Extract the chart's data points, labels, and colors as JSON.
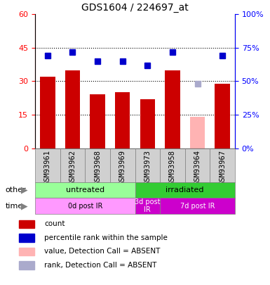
{
  "title": "GDS1604 / 224697_at",
  "samples": [
    "GSM93961",
    "GSM93962",
    "GSM93968",
    "GSM93969",
    "GSM93973",
    "GSM93958",
    "GSM93964",
    "GSM93967"
  ],
  "counts": [
    32,
    35,
    24,
    25,
    22,
    35,
    null,
    29
  ],
  "ranks": [
    69,
    72,
    65,
    65,
    62,
    72,
    null,
    69
  ],
  "absent_count": [
    null,
    null,
    null,
    null,
    null,
    null,
    14,
    null
  ],
  "absent_rank": [
    null,
    null,
    null,
    null,
    null,
    null,
    48,
    null
  ],
  "ylim_left": [
    0,
    60
  ],
  "ylim_right": [
    0,
    100
  ],
  "yticks_left": [
    0,
    15,
    30,
    45,
    60
  ],
  "yticks_right": [
    0,
    25,
    50,
    75,
    100
  ],
  "ytick_labels_left": [
    "0",
    "15",
    "30",
    "45",
    "60"
  ],
  "ytick_labels_right": [
    "0%",
    "25%",
    "50%",
    "75%",
    "100%"
  ],
  "bar_color": "#cc0000",
  "bar_color_absent": "#ffb3b3",
  "rank_color": "#0000cc",
  "rank_color_absent": "#aaaacc",
  "group_other": [
    {
      "label": "untreated",
      "start": 0,
      "end": 4,
      "color": "#99ff99"
    },
    {
      "label": "irradiated",
      "start": 4,
      "end": 8,
      "color": "#33cc33"
    }
  ],
  "group_time": [
    {
      "label": "0d post IR",
      "start": 0,
      "end": 4,
      "color": "#ff99ff"
    },
    {
      "label": "3d post\nIR",
      "start": 4,
      "end": 5,
      "color": "#cc00cc"
    },
    {
      "label": "7d post IR",
      "start": 5,
      "end": 8,
      "color": "#cc00cc"
    }
  ],
  "legend_items": [
    {
      "label": "count",
      "color": "#cc0000",
      "marker": "s"
    },
    {
      "label": "percentile rank within the sample",
      "color": "#0000cc",
      "marker": "s"
    },
    {
      "label": "value, Detection Call = ABSENT",
      "color": "#ffb3b3",
      "marker": "s"
    },
    {
      "label": "rank, Detection Call = ABSENT",
      "color": "#aaaacc",
      "marker": "s"
    }
  ],
  "other_label": "other",
  "time_label": "time"
}
